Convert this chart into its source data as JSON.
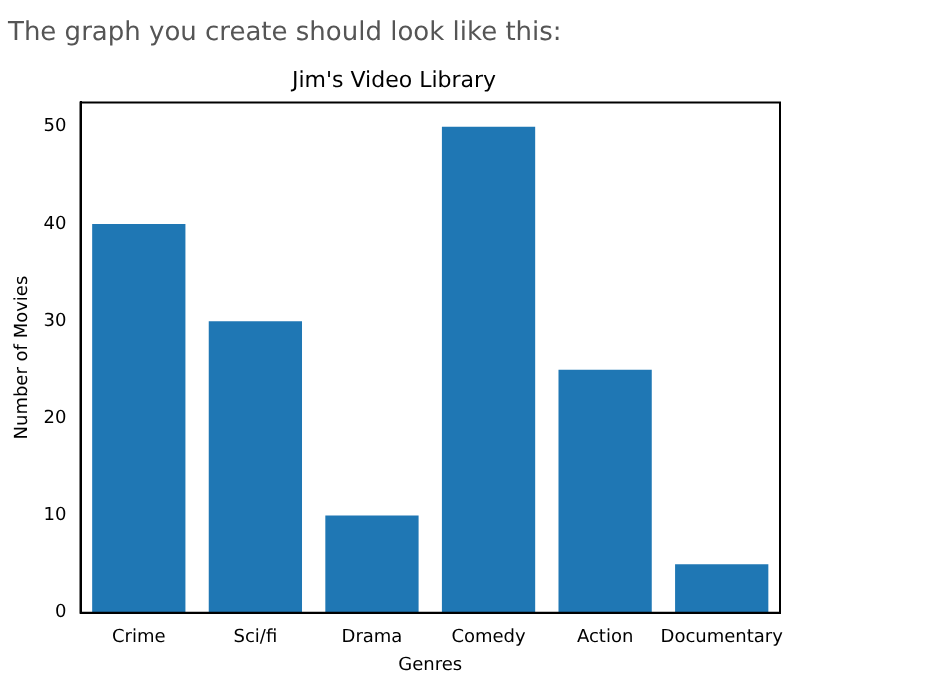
{
  "chart_data": {
    "type": "bar",
    "title": "Jim's Video Library",
    "xlabel": "Genres",
    "ylabel": "Number of Movies",
    "annotations": [
      "The graph you create should look like this:"
    ],
    "categories": [
      "Crime",
      "Sci/fi",
      "Drama",
      "Comedy",
      "Action",
      "Documentary"
    ],
    "values": [
      40,
      30,
      10,
      50,
      25,
      5
    ],
    "color": "#1f77b4",
    "ylim": [
      0,
      52.5
    ],
    "yticks": [
      0,
      10,
      20,
      30,
      40,
      50
    ],
    "grid": false,
    "legend": false
  }
}
